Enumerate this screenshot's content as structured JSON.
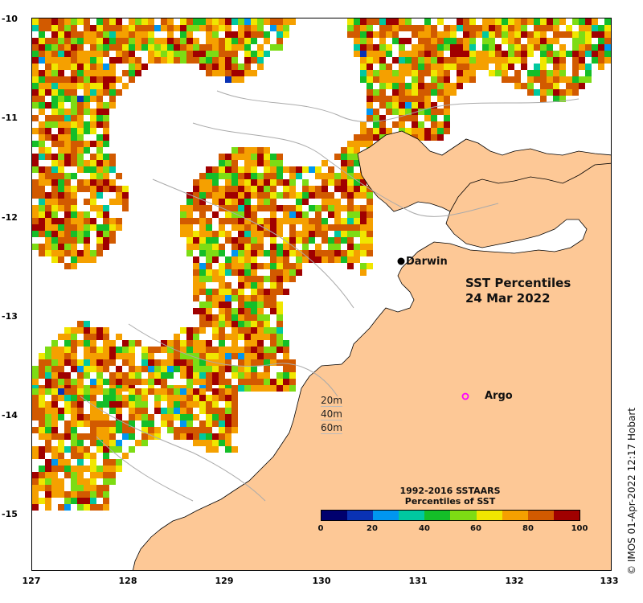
{
  "map": {
    "title_line1": "SST Percentiles",
    "title_line2": "24 Mar 2022",
    "credit": "© IMOS 01-Apr-2022 12:17 Hobart",
    "y_ticks": [
      "-10",
      "-11",
      "-12",
      "-13",
      "-14",
      "-15"
    ],
    "x_ticks": [
      "127",
      "128",
      "129",
      "130",
      "131",
      "132",
      "133"
    ],
    "places": [
      {
        "label": "Darwin",
        "marker": "filled-dot"
      },
      {
        "label": "Argo",
        "marker": "magenta-ring"
      }
    ],
    "contour_legend": [
      "20m",
      "40m",
      "60m"
    ],
    "colorbar": {
      "title_line1": "1992-2016 SSTAARS",
      "title_line2": "Percentiles of SST",
      "ticks": [
        "0",
        "20",
        "40",
        "60",
        "80",
        "100"
      ],
      "colors": [
        "#00006e",
        "#0a32b4",
        "#0096f0",
        "#00c8a0",
        "#14be28",
        "#7ddc14",
        "#f0e600",
        "#f5a000",
        "#d25a00",
        "#a00000"
      ]
    },
    "land_color": "#fdc896",
    "nodata_color": "#ffffff"
  }
}
